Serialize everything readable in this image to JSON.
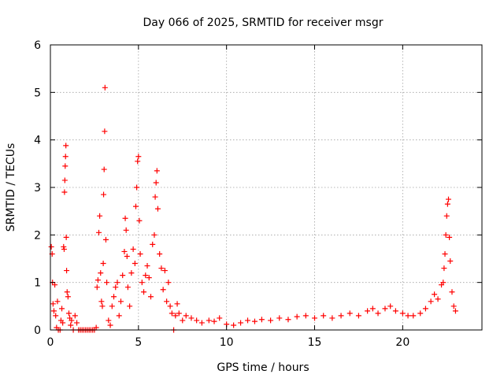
{
  "chart_data": {
    "type": "scatter",
    "title": "Day 066 of 2025, SRMTID for receiver msgr",
    "xlabel": "GPS time / hours",
    "ylabel": "SRMTID / TECUs",
    "xlim": [
      0,
      24.5
    ],
    "ylim": [
      0,
      6
    ],
    "xticks": [
      0,
      5,
      10,
      15,
      20
    ],
    "yticks": [
      0,
      1,
      2,
      3,
      4,
      5,
      6
    ],
    "grid": true,
    "marker": "+",
    "color": "#ff0000",
    "series": [
      {
        "name": "msgr",
        "points": [
          [
            0.05,
            1.75
          ],
          [
            0.1,
            1.6
          ],
          [
            0.12,
            1.0
          ],
          [
            0.15,
            0.55
          ],
          [
            0.2,
            0.4
          ],
          [
            0.25,
            0.95
          ],
          [
            0.3,
            0.3
          ],
          [
            0.35,
            0.05
          ],
          [
            0.4,
            0.6
          ],
          [
            0.45,
            0.0
          ],
          [
            0.55,
            0.0
          ],
          [
            0.6,
            0.2
          ],
          [
            0.65,
            0.45
          ],
          [
            0.7,
            0.15
          ],
          [
            0.75,
            1.75
          ],
          [
            0.78,
            1.7
          ],
          [
            0.8,
            2.9
          ],
          [
            0.82,
            3.15
          ],
          [
            0.84,
            3.45
          ],
          [
            0.86,
            3.65
          ],
          [
            0.88,
            3.88
          ],
          [
            0.9,
            1.95
          ],
          [
            0.92,
            1.25
          ],
          [
            0.95,
            0.8
          ],
          [
            1.0,
            0.7
          ],
          [
            1.05,
            0.35
          ],
          [
            1.1,
            0.25
          ],
          [
            1.15,
            0.1
          ],
          [
            1.2,
            0.2
          ],
          [
            1.3,
            0.0
          ],
          [
            1.4,
            0.3
          ],
          [
            1.5,
            0.15
          ],
          [
            1.6,
            0.0
          ],
          [
            1.7,
            0.0
          ],
          [
            1.8,
            0.0
          ],
          [
            1.9,
            0.0
          ],
          [
            2.0,
            0.0
          ],
          [
            2.1,
            0.0
          ],
          [
            2.2,
            0.0
          ],
          [
            2.3,
            0.0
          ],
          [
            2.4,
            0.0
          ],
          [
            2.5,
            0.0
          ],
          [
            2.6,
            0.05
          ],
          [
            2.65,
            0.9
          ],
          [
            2.7,
            1.05
          ],
          [
            2.75,
            2.05
          ],
          [
            2.8,
            2.4
          ],
          [
            2.85,
            1.2
          ],
          [
            2.9,
            0.6
          ],
          [
            2.95,
            0.5
          ],
          [
            3.0,
            1.4
          ],
          [
            3.02,
            2.85
          ],
          [
            3.05,
            3.38
          ],
          [
            3.08,
            4.18
          ],
          [
            3.1,
            5.1
          ],
          [
            3.15,
            1.9
          ],
          [
            3.2,
            1.0
          ],
          [
            3.3,
            0.2
          ],
          [
            3.4,
            0.1
          ],
          [
            3.5,
            0.5
          ],
          [
            3.6,
            0.7
          ],
          [
            3.7,
            0.9
          ],
          [
            3.8,
            1.0
          ],
          [
            3.9,
            0.3
          ],
          [
            4.0,
            0.6
          ],
          [
            4.1,
            1.15
          ],
          [
            4.2,
            1.65
          ],
          [
            4.25,
            2.35
          ],
          [
            4.3,
            2.1
          ],
          [
            4.35,
            1.55
          ],
          [
            4.4,
            0.9
          ],
          [
            4.5,
            0.5
          ],
          [
            4.6,
            1.2
          ],
          [
            4.7,
            1.7
          ],
          [
            4.8,
            1.4
          ],
          [
            4.85,
            2.6
          ],
          [
            4.9,
            3.0
          ],
          [
            4.95,
            3.55
          ],
          [
            5.0,
            3.65
          ],
          [
            5.05,
            2.3
          ],
          [
            5.1,
            1.6
          ],
          [
            5.2,
            1.0
          ],
          [
            5.3,
            0.8
          ],
          [
            5.4,
            1.15
          ],
          [
            5.5,
            1.35
          ],
          [
            5.6,
            1.1
          ],
          [
            5.7,
            0.7
          ],
          [
            5.8,
            1.8
          ],
          [
            5.9,
            2.0
          ],
          [
            5.95,
            2.8
          ],
          [
            6.0,
            3.1
          ],
          [
            6.05,
            3.35
          ],
          [
            6.1,
            2.55
          ],
          [
            6.2,
            1.6
          ],
          [
            6.3,
            1.3
          ],
          [
            6.4,
            0.85
          ],
          [
            6.5,
            1.25
          ],
          [
            6.6,
            0.6
          ],
          [
            6.7,
            1.0
          ],
          [
            6.8,
            0.5
          ],
          [
            6.9,
            0.35
          ],
          [
            7.0,
            0.0
          ],
          [
            7.1,
            0.3
          ],
          [
            7.2,
            0.55
          ],
          [
            7.3,
            0.35
          ],
          [
            7.5,
            0.2
          ],
          [
            7.7,
            0.3
          ],
          [
            8.0,
            0.25
          ],
          [
            8.3,
            0.2
          ],
          [
            8.6,
            0.15
          ],
          [
            9.0,
            0.2
          ],
          [
            9.3,
            0.18
          ],
          [
            9.6,
            0.25
          ],
          [
            10.0,
            0.12
          ],
          [
            10.4,
            0.1
          ],
          [
            10.8,
            0.15
          ],
          [
            11.2,
            0.2
          ],
          [
            11.6,
            0.18
          ],
          [
            12.0,
            0.22
          ],
          [
            12.5,
            0.2
          ],
          [
            13.0,
            0.25
          ],
          [
            13.5,
            0.22
          ],
          [
            14.0,
            0.28
          ],
          [
            14.5,
            0.3
          ],
          [
            15.0,
            0.25
          ],
          [
            15.5,
            0.3
          ],
          [
            16.0,
            0.25
          ],
          [
            16.5,
            0.3
          ],
          [
            17.0,
            0.35
          ],
          [
            17.5,
            0.3
          ],
          [
            18.0,
            0.4
          ],
          [
            18.3,
            0.45
          ],
          [
            18.6,
            0.35
          ],
          [
            19.0,
            0.45
          ],
          [
            19.3,
            0.5
          ],
          [
            19.6,
            0.4
          ],
          [
            20.0,
            0.35
          ],
          [
            20.3,
            0.3
          ],
          [
            20.6,
            0.3
          ],
          [
            21.0,
            0.35
          ],
          [
            21.3,
            0.45
          ],
          [
            21.6,
            0.6
          ],
          [
            21.8,
            0.75
          ],
          [
            22.0,
            0.65
          ],
          [
            22.2,
            0.95
          ],
          [
            22.3,
            1.0
          ],
          [
            22.35,
            1.3
          ],
          [
            22.4,
            1.6
          ],
          [
            22.45,
            2.0
          ],
          [
            22.5,
            2.4
          ],
          [
            22.55,
            2.65
          ],
          [
            22.6,
            2.75
          ],
          [
            22.65,
            1.95
          ],
          [
            22.7,
            1.45
          ],
          [
            22.8,
            0.8
          ],
          [
            22.9,
            0.5
          ],
          [
            23.0,
            0.4
          ]
        ]
      }
    ]
  }
}
